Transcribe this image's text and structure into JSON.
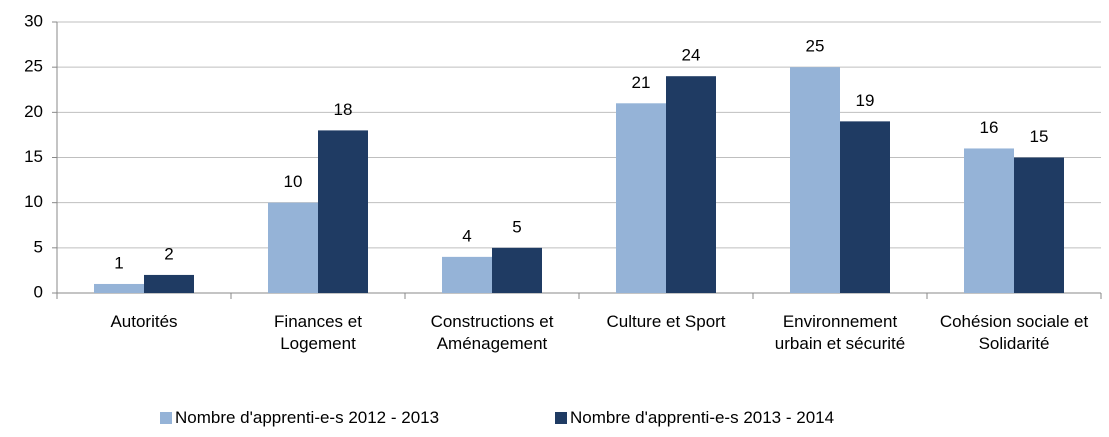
{
  "chart_data": {
    "type": "bar",
    "categories": [
      "Autorités",
      "Finances et Logement",
      "Constructions et Aménagement",
      "Culture et Sport",
      "Environnement urbain et sécurité",
      "Cohésion sociale et Solidarité"
    ],
    "series": [
      {
        "name": "Nombre d'apprenti-e-s 2012 - 2013",
        "color": "#95b3d7",
        "values": [
          1,
          10,
          4,
          21,
          25,
          16
        ]
      },
      {
        "name": "Nombre d'apprenti-e-s 2013 - 2014",
        "color": "#1f3b63",
        "values": [
          2,
          18,
          5,
          24,
          19,
          15
        ]
      }
    ],
    "ylim": [
      0,
      30
    ],
    "yticks": [
      0,
      5,
      10,
      15,
      20,
      25,
      30
    ],
    "grid": true,
    "legend": "bottom"
  }
}
